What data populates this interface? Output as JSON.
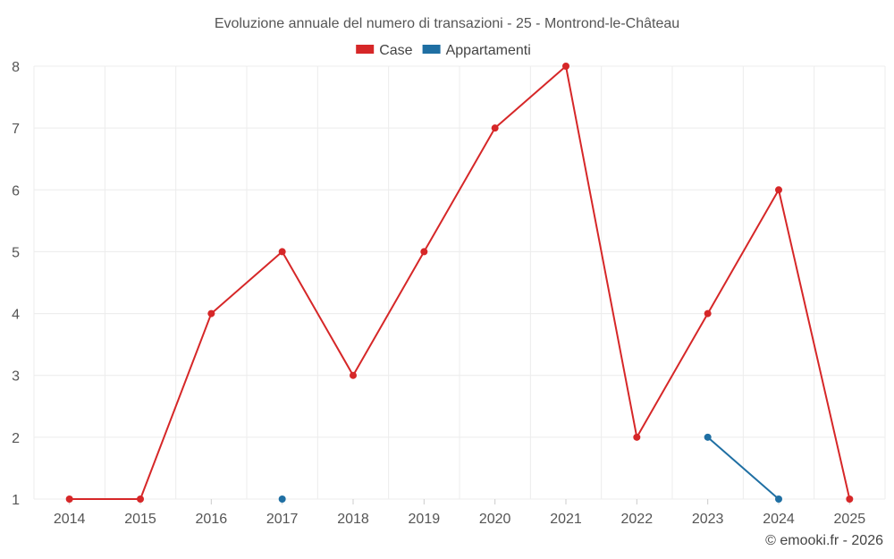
{
  "chart_data": {
    "type": "line",
    "title": "Evoluzione annuale del numero di transazioni - 25 - Montrond-le-Château",
    "categories": [
      "2014",
      "2015",
      "2016",
      "2017",
      "2018",
      "2019",
      "2020",
      "2021",
      "2022",
      "2023",
      "2024",
      "2025"
    ],
    "series": [
      {
        "name": "Case",
        "color": "#d62728",
        "values": [
          1,
          1,
          4,
          5,
          3,
          5,
          7,
          8,
          2,
          4,
          6,
          1
        ]
      },
      {
        "name": "Appartamenti",
        "color": "#1f6fa3",
        "values": [
          null,
          null,
          null,
          1,
          null,
          null,
          null,
          null,
          null,
          2,
          1,
          null
        ]
      }
    ],
    "ylim": [
      1,
      8
    ],
    "yticks": [
      1,
      2,
      3,
      4,
      5,
      6,
      7,
      8
    ],
    "grid": true,
    "legend_position": "top-center"
  },
  "credit": "© emooki.fr - 2026"
}
